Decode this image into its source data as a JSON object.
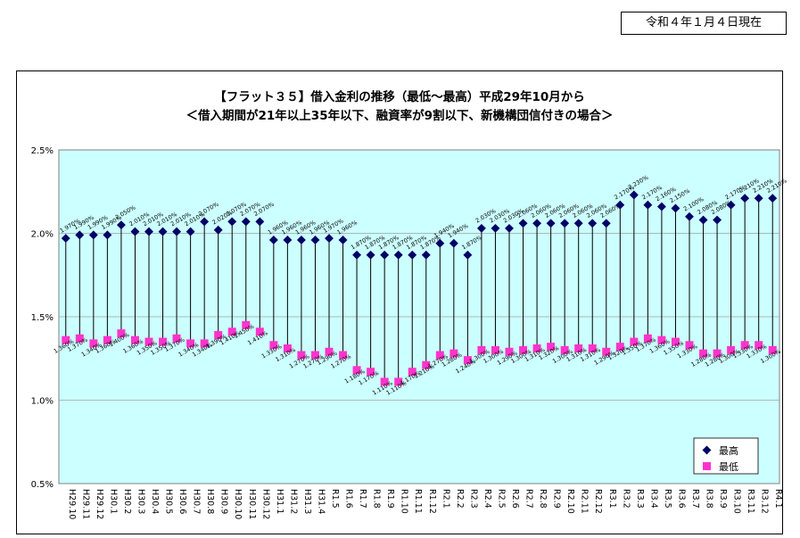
{
  "as_of_date": "令和４年１月４日現在",
  "chart_data": {
    "type": "line",
    "title": "【フラット３５】借入金利の推移（最低～最高）平成29年10月から",
    "subtitle": "＜借入期間が21年以上35年以下、融資率が9割以下、新機構団信付きの場合＞",
    "ylim": [
      0.5,
      2.5
    ],
    "yticks": [
      "0.5%",
      "1.0%",
      "1.5%",
      "2.0%",
      "2.5%"
    ],
    "grid": true,
    "legend_position": "bottom-right",
    "colors": {
      "max": "#000066",
      "min": "#ff33cc",
      "plot_bg": "#ccffff",
      "connector": "#000000"
    },
    "categories": [
      "H29.10",
      "H29.11",
      "H29.12",
      "H30.1",
      "H30.2",
      "H30.3",
      "H30.4",
      "H30.5",
      "H30.6",
      "H30.7",
      "H30.8",
      "H30.9",
      "H30.10",
      "H30.11",
      "H30.12",
      "H31.1",
      "H31.2",
      "H31.3",
      "H31.4",
      "R1.5",
      "R1.6",
      "R1.7",
      "R1.8",
      "R1.9",
      "R1.10",
      "R1.11",
      "R1.12",
      "R2.1",
      "R2.2",
      "R2.3",
      "R2.4",
      "R2.5",
      "R2.6",
      "R2.7",
      "R2.8",
      "R2.9",
      "R2.10",
      "R2.11",
      "R2.12",
      "R3.1",
      "R3.2",
      "R3.3",
      "R3.4",
      "R3.5",
      "R3.6",
      "R3.7",
      "R3.8",
      "R3.9",
      "R3.10",
      "R3.11",
      "R3.12",
      "R4.1"
    ],
    "series": [
      {
        "name": "最高",
        "marker": "diamond",
        "values": [
          1.97,
          1.99,
          1.99,
          1.99,
          2.05,
          2.01,
          2.01,
          2.01,
          2.01,
          2.01,
          2.07,
          2.02,
          2.07,
          2.07,
          2.07,
          1.96,
          1.96,
          1.96,
          1.96,
          1.97,
          1.96,
          1.87,
          1.87,
          1.87,
          1.87,
          1.87,
          1.87,
          1.94,
          1.94,
          1.87,
          2.03,
          2.03,
          2.03,
          2.06,
          2.06,
          2.06,
          2.06,
          2.06,
          2.06,
          2.06,
          2.17,
          2.23,
          2.17,
          2.16,
          2.15,
          2.1,
          2.08,
          2.08,
          2.17,
          2.21,
          2.21,
          2.21
        ],
        "labels": [
          "1.970%",
          "1.990%",
          "1.990%",
          "1.990%",
          "2.050%",
          "2.010%",
          "2.010%",
          "2.010%",
          "2.010%",
          "2.010%",
          "2.070%",
          "2.020%",
          "2.070%",
          "2.070%",
          "2.070%",
          "1.960%",
          "1.960%",
          "1.960%",
          "1.960%",
          "1.970%",
          "1.960%",
          "1.870%",
          "1.870%",
          "1.870%",
          "1.870%",
          "1.870%",
          "1.870%",
          "1.940%",
          "1.940%",
          "1.870%",
          "2.030%",
          "2.030%",
          "2.030%",
          "2.060%",
          "2.060%",
          "2.060%",
          "2.060%",
          "2.060%",
          "2.060%",
          "2.060%",
          "2.170%",
          "2.230%",
          "2.170%",
          "2.160%",
          "2.150%",
          "2.100%",
          "2.080%",
          "2.080%",
          "2.170%",
          "2.210%",
          "2.210%",
          "2.210%"
        ]
      },
      {
        "name": "最低",
        "marker": "square",
        "values": [
          1.36,
          1.37,
          1.34,
          1.36,
          1.4,
          1.36,
          1.35,
          1.35,
          1.37,
          1.34,
          1.34,
          1.39,
          1.41,
          1.45,
          1.41,
          1.33,
          1.31,
          1.27,
          1.27,
          1.29,
          1.27,
          1.18,
          1.17,
          1.11,
          1.11,
          1.17,
          1.21,
          1.27,
          1.28,
          1.24,
          1.3,
          1.3,
          1.29,
          1.3,
          1.31,
          1.32,
          1.3,
          1.31,
          1.31,
          1.29,
          1.32,
          1.35,
          1.37,
          1.36,
          1.35,
          1.33,
          1.28,
          1.28,
          1.3,
          1.33,
          1.33,
          1.3
        ],
        "labels": [
          "1.360%",
          "1.370%",
          "1.340%",
          "1.360%",
          "1.400%",
          "1.360%",
          "1.350%",
          "1.350%",
          "1.370%",
          "1.340%",
          "1.340%",
          "1.390%",
          "1.410%",
          "1.450%",
          "1.410%",
          "1.330%",
          "1.310%",
          "1.270%",
          "1.270%",
          "1.290%",
          "1.270%",
          "1.180%",
          "1.170%",
          "1.110%",
          "1.110%",
          "1.170%",
          "1.210%",
          "1.270%",
          "1.280%",
          "1.240%",
          "1.300%",
          "1.300%",
          "1.290%",
          "1.300%",
          "1.310%",
          "1.320%",
          "1.300%",
          "1.310%",
          "1.310%",
          "1.290%",
          "1.320%",
          "1.350%",
          "1.370%",
          "1.360%",
          "1.350%",
          "1.330%",
          "1.280%",
          "1.280%",
          "1.300%",
          "1.330%",
          "1.330%",
          "1.300%"
        ]
      }
    ]
  }
}
